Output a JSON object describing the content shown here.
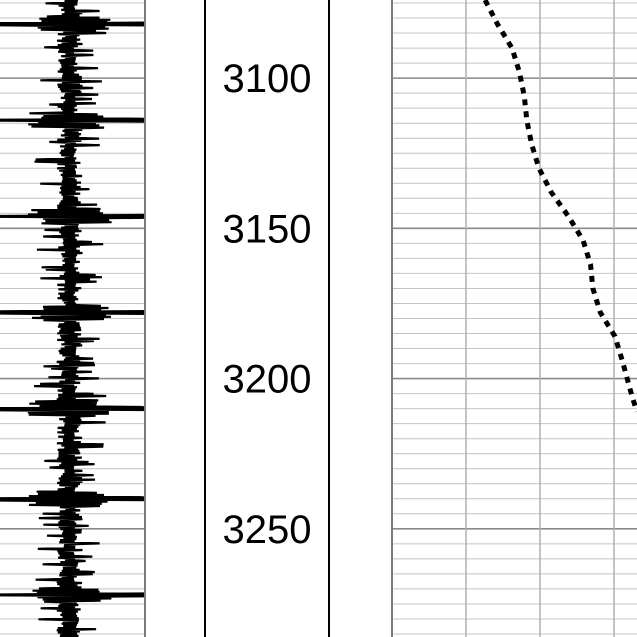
{
  "chart_data": {
    "type": "line",
    "title": "",
    "depth_range": [
      3074,
      3286
    ],
    "depth_ticks": [
      3100,
      3150,
      3200,
      3250
    ],
    "depth_tick_labels": [
      "3100",
      "3150",
      "3200",
      "3250"
    ],
    "grid": true,
    "tracks": [
      {
        "name": "",
        "kind": "wiggle",
        "color": "#000000",
        "baseline_fraction": 0.48,
        "spike_depths": [
          3082,
          3114,
          3146,
          3178,
          3210,
          3240,
          3272
        ]
      },
      {
        "name": "",
        "kind": "dashed-curve",
        "color": "#000000",
        "x_fraction_range": [
          0,
          1
        ],
        "points": [
          {
            "depth": 3074,
            "x": 0.38
          },
          {
            "depth": 3082,
            "x": 0.43
          },
          {
            "depth": 3090,
            "x": 0.49
          },
          {
            "depth": 3098,
            "x": 0.52
          },
          {
            "depth": 3106,
            "x": 0.54
          },
          {
            "depth": 3114,
            "x": 0.55
          },
          {
            "depth": 3122,
            "x": 0.57
          },
          {
            "depth": 3130,
            "x": 0.6
          },
          {
            "depth": 3138,
            "x": 0.65
          },
          {
            "depth": 3146,
            "x": 0.72
          },
          {
            "depth": 3154,
            "x": 0.78
          },
          {
            "depth": 3162,
            "x": 0.81
          },
          {
            "depth": 3170,
            "x": 0.82
          },
          {
            "depth": 3178,
            "x": 0.85
          },
          {
            "depth": 3186,
            "x": 0.91
          },
          {
            "depth": 3194,
            "x": 0.94
          },
          {
            "depth": 3200,
            "x": 0.96
          },
          {
            "depth": 3206,
            "x": 0.98
          },
          {
            "depth": 3211,
            "x": 1.0
          }
        ]
      }
    ]
  }
}
